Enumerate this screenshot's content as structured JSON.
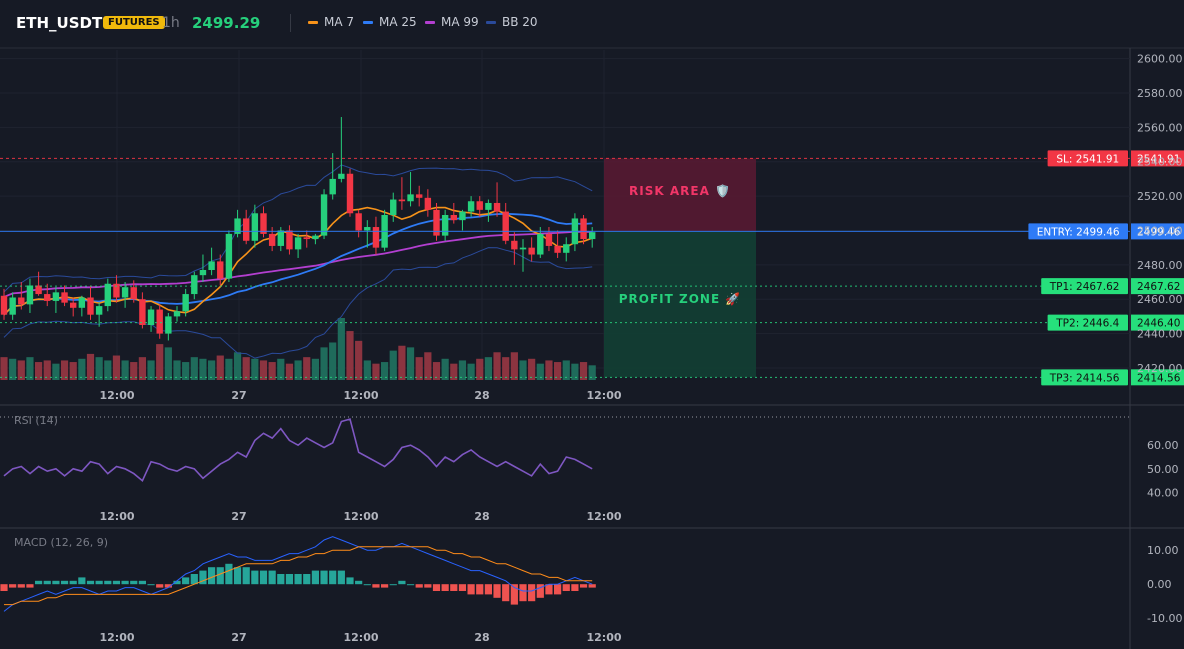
{
  "header": {
    "symbol": "ETH_USDT",
    "badge": "FUTURES",
    "interval": "1h",
    "price": "2499.29",
    "legend": [
      {
        "label": "MA 7",
        "color": "#f7931a"
      },
      {
        "label": "MA 25",
        "color": "#2e7bf6"
      },
      {
        "label": "MA 99",
        "color": "#b33fd0"
      },
      {
        "label": "BB 20",
        "color": "#2a4a9a"
      }
    ]
  },
  "colors": {
    "up": "#26d07c",
    "down": "#f23645",
    "vol_up": "#1f6b5b",
    "vol_down": "#8c3440",
    "ma7": "#f7931a",
    "ma25": "#2e7bf6",
    "ma99": "#b33fd0",
    "bb": "#2a4a9a",
    "rsi": "#7e57c2",
    "macd": "#2962ff",
    "signal": "#ff8c1a",
    "hist_up": "#26a69a",
    "hist_down": "#ef5350"
  },
  "chart_data": [
    {
      "type": "candlestick",
      "panel": "price",
      "y_ticks": [
        "2600.00",
        "2580.00",
        "2560.00",
        "2540.00",
        "2520.00",
        "2500.00",
        "2480.00",
        "2460.00",
        "2440.00",
        "2420.00"
      ],
      "ylim": [
        2413,
        2605
      ],
      "x_ticks": [
        "12:00",
        "27",
        "12:00",
        "28",
        "12:00"
      ],
      "candles": [
        [
          2462,
          2466,
          2448,
          2451
        ],
        [
          2451,
          2464,
          2448,
          2461
        ],
        [
          2461,
          2470,
          2454,
          2457
        ],
        [
          2457,
          2472,
          2452,
          2468
        ],
        [
          2468,
          2476,
          2462,
          2463
        ],
        [
          2463,
          2469,
          2456,
          2459
        ],
        [
          2459,
          2467,
          2452,
          2464
        ],
        [
          2464,
          2468,
          2456,
          2458
        ],
        [
          2458,
          2461,
          2450,
          2455
        ],
        [
          2455,
          2462,
          2450,
          2461
        ],
        [
          2461,
          2468,
          2448,
          2451
        ],
        [
          2451,
          2458,
          2444,
          2456
        ],
        [
          2456,
          2472,
          2453,
          2469
        ],
        [
          2469,
          2474,
          2458,
          2461
        ],
        [
          2461,
          2470,
          2455,
          2467
        ],
        [
          2467,
          2471,
          2458,
          2460
        ],
        [
          2460,
          2464,
          2443,
          2445
        ],
        [
          2445,
          2456,
          2441,
          2454
        ],
        [
          2454,
          2457,
          2437,
          2440
        ],
        [
          2440,
          2452,
          2436,
          2450
        ],
        [
          2450,
          2456,
          2447,
          2453
        ],
        [
          2453,
          2466,
          2450,
          2463
        ],
        [
          2463,
          2476,
          2460,
          2474
        ],
        [
          2474,
          2486,
          2470,
          2477
        ],
        [
          2477,
          2490,
          2474,
          2482
        ],
        [
          2482,
          2486,
          2468,
          2472
        ],
        [
          2472,
          2500,
          2470,
          2498
        ],
        [
          2498,
          2512,
          2496,
          2507
        ],
        [
          2507,
          2512,
          2492,
          2494
        ],
        [
          2494,
          2515,
          2490,
          2510
        ],
        [
          2510,
          2514,
          2496,
          2498
        ],
        [
          2498,
          2502,
          2488,
          2491
        ],
        [
          2491,
          2502,
          2488,
          2500
        ],
        [
          2500,
          2503,
          2486,
          2489
        ],
        [
          2489,
          2498,
          2484,
          2496
        ],
        [
          2496,
          2500,
          2490,
          2495
        ],
        [
          2495,
          2498,
          2492,
          2497
        ],
        [
          2497,
          2524,
          2495,
          2521
        ],
        [
          2521,
          2545,
          2518,
          2530
        ],
        [
          2530,
          2566,
          2528,
          2533
        ],
        [
          2533,
          2536,
          2508,
          2510
        ],
        [
          2510,
          2512,
          2496,
          2500
        ],
        [
          2500,
          2506,
          2490,
          2502
        ],
        [
          2502,
          2508,
          2486,
          2490
        ],
        [
          2490,
          2512,
          2488,
          2509
        ],
        [
          2509,
          2522,
          2505,
          2518
        ],
        [
          2518,
          2531,
          2512,
          2517
        ],
        [
          2517,
          2534,
          2514,
          2521
        ],
        [
          2521,
          2526,
          2514,
          2519
        ],
        [
          2519,
          2524,
          2508,
          2512
        ],
        [
          2512,
          2516,
          2494,
          2497
        ],
        [
          2497,
          2512,
          2494,
          2509
        ],
        [
          2509,
          2516,
          2504,
          2506
        ],
        [
          2506,
          2512,
          2500,
          2511
        ],
        [
          2511,
          2520,
          2508,
          2517
        ],
        [
          2517,
          2520,
          2508,
          2512
        ],
        [
          2512,
          2518,
          2505,
          2516
        ],
        [
          2516,
          2528,
          2508,
          2511
        ],
        [
          2511,
          2516,
          2492,
          2494
        ],
        [
          2494,
          2499,
          2480,
          2489
        ],
        [
          2489,
          2495,
          2476,
          2490
        ],
        [
          2490,
          2496,
          2482,
          2486
        ],
        [
          2486,
          2502,
          2484,
          2498
        ],
        [
          2498,
          2502,
          2488,
          2491
        ],
        [
          2491,
          2500,
          2484,
          2487
        ],
        [
          2487,
          2496,
          2482,
          2492
        ],
        [
          2492,
          2510,
          2488,
          2507
        ],
        [
          2507,
          2509,
          2492,
          2495
        ],
        [
          2495,
          2502,
          2490,
          2499
        ]
      ],
      "volume": [
        14,
        13,
        12,
        14,
        11,
        12,
        10,
        12,
        11,
        13,
        16,
        14,
        12,
        15,
        12,
        11,
        14,
        12,
        22,
        20,
        12,
        11,
        14,
        13,
        12,
        15,
        13,
        17,
        14,
        13,
        12,
        11,
        13,
        10,
        12,
        14,
        13,
        20,
        23,
        38,
        30,
        24,
        12,
        10,
        11,
        18,
        21,
        20,
        14,
        17,
        11,
        13,
        10,
        12,
        10,
        13,
        14,
        17,
        14,
        17,
        12,
        13,
        10,
        12,
        11,
        12,
        10,
        11,
        9
      ],
      "price_lines": {
        "sl": {
          "label": "SL: 2541.91",
          "value": "2541.91",
          "y": 2541.91
        },
        "entry": {
          "label": "ENTRY: 2499.46",
          "value": "2499.46",
          "y": 2499.46
        },
        "tp1": {
          "label": "TP1: 2467.62",
          "value": "2467.62",
          "y": 2467.62
        },
        "tp2": {
          "label": "TP2: 2446.4",
          "value": "2446.40",
          "y": 2446.4
        },
        "tp3": {
          "label": "TP3: 2414.56",
          "value": "2414.56",
          "y": 2414.56
        }
      },
      "zones": {
        "risk": "RISK AREA 🛡️",
        "profit": "PROFIT ZONE 🚀"
      }
    },
    {
      "type": "line",
      "panel": "rsi",
      "title": "RSI (14)",
      "y_ticks": [
        "60.00",
        "50.00",
        "40.00"
      ],
      "ylim": [
        36,
        74
      ],
      "x_ticks": [
        "12:00",
        "27",
        "12:00",
        "28",
        "12:00"
      ],
      "values": [
        47,
        50,
        51,
        48,
        51,
        49,
        50,
        47,
        50,
        49,
        53,
        52,
        48,
        51,
        50,
        48,
        45,
        53,
        52,
        50,
        49,
        51,
        50,
        46,
        49,
        52,
        54,
        57,
        55,
        62,
        65,
        63,
        67,
        62,
        60,
        63,
        61,
        59,
        61,
        70,
        71,
        57,
        55,
        53,
        51,
        54,
        59,
        60,
        58,
        55,
        51,
        55,
        53,
        56,
        58,
        55,
        53,
        51,
        53,
        51,
        49,
        47,
        52,
        48,
        49,
        55,
        54,
        52,
        50
      ]
    },
    {
      "type": "line",
      "panel": "macd",
      "title": "MACD (12, 26, 9)",
      "y_ticks": [
        "10.00",
        "0.00",
        "-10.00"
      ],
      "ylim": [
        -12,
        13
      ],
      "x_ticks": [
        "12:00",
        "27",
        "12:00",
        "28",
        "12:00"
      ],
      "macd": [
        -8,
        -6,
        -5,
        -4,
        -3,
        -2,
        -3,
        -2,
        -1,
        -1,
        -2,
        -3,
        -2,
        -2,
        -1,
        -1,
        -2,
        -3,
        -2,
        -1,
        1,
        3,
        4,
        6,
        7,
        8,
        9,
        8,
        8,
        7,
        7,
        7,
        8,
        9,
        9,
        10,
        11,
        13,
        14,
        13,
        12,
        11,
        10,
        10,
        11,
        11,
        12,
        11,
        10,
        9,
        8,
        7,
        6,
        5,
        4,
        4,
        3,
        2,
        1,
        -1,
        -2,
        -2,
        -1,
        0,
        0,
        1,
        2,
        1,
        0
      ],
      "signal": [
        -6,
        -6,
        -5,
        -5,
        -5,
        -4,
        -4,
        -3,
        -3,
        -3,
        -3,
        -3,
        -3,
        -3,
        -3,
        -3,
        -3,
        -3,
        -3,
        -3,
        -2,
        -1,
        0,
        1,
        2,
        3,
        4,
        5,
        6,
        6,
        6,
        6,
        7,
        7,
        8,
        8,
        9,
        9,
        10,
        10,
        10,
        11,
        11,
        11,
        11,
        11,
        11,
        11,
        11,
        11,
        10,
        10,
        9,
        9,
        8,
        8,
        7,
        6,
        6,
        5,
        4,
        3,
        3,
        2,
        2,
        1,
        1,
        1,
        1
      ],
      "hist": [
        -2,
        -1,
        -1,
        -1,
        1,
        1,
        1,
        1,
        1,
        2,
        1,
        1,
        1,
        1,
        1,
        1,
        1,
        0,
        -1,
        -1,
        1,
        2,
        3,
        4,
        5,
        5,
        6,
        5,
        5,
        4,
        4,
        4,
        3,
        3,
        3,
        3,
        4,
        4,
        4,
        4,
        2,
        1,
        0,
        -1,
        -1,
        0,
        1,
        0,
        -1,
        -1,
        -2,
        -2,
        -2,
        -2,
        -3,
        -3,
        -3,
        -4,
        -5,
        -6,
        -5,
        -5,
        -4,
        -3,
        -3,
        -2,
        -2,
        -1,
        -1
      ]
    }
  ]
}
